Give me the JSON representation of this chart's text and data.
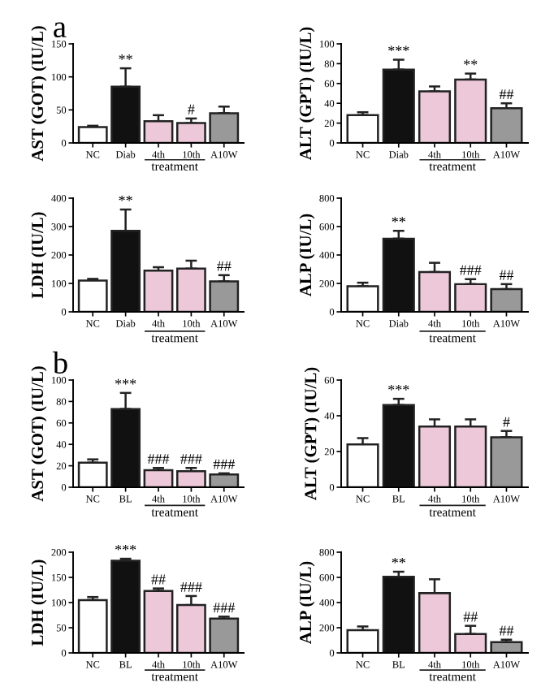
{
  "chart_data": [
    {
      "type": "bar",
      "title": "a",
      "ylabel": "AST (GOT) (IU/L)",
      "xlabel": "treatment",
      "categories": [
        "NC",
        "Diab",
        "4th",
        "10th",
        "A10W"
      ],
      "values": [
        24,
        85,
        33,
        30,
        45
      ],
      "colors": [
        "#ffffff",
        "#111111",
        "#ecc8d8",
        "#ecc8d8",
        "#999999"
      ],
      "errors": [
        [
          24,
          26
        ],
        [
          85,
          113
        ],
        [
          33,
          42
        ],
        [
          30,
          37
        ],
        [
          45,
          55
        ]
      ],
      "ylim": [
        0,
        150
      ],
      "yticks": [
        0,
        50,
        100,
        150
      ],
      "annotations": [
        {
          "text": "**",
          "x": "Diab",
          "y": 113
        },
        {
          "text": "#",
          "x": "10th",
          "y": 37
        }
      ]
    },
    {
      "type": "bar",
      "ylabel": "ALT (GPT) (IU/L)",
      "xlabel": "treatment",
      "categories": [
        "NC",
        "Diab",
        "4th",
        "10th",
        "A10W"
      ],
      "values": [
        28,
        74,
        52,
        64,
        35
      ],
      "colors": [
        "#ffffff",
        "#111111",
        "#ecc8d8",
        "#ecc8d8",
        "#999999"
      ],
      "errors": [
        [
          28,
          31
        ],
        [
          74,
          84
        ],
        [
          52,
          57
        ],
        [
          64,
          70
        ],
        [
          35,
          40
        ]
      ],
      "ylim": [
        0,
        100
      ],
      "yticks": [
        0,
        20,
        40,
        60,
        80,
        100
      ],
      "annotations": [
        {
          "text": "***",
          "x": "Diab",
          "y": 84
        },
        {
          "text": "**",
          "x": "10th",
          "y": 70
        },
        {
          "text": "##",
          "x": "A10W",
          "y": 40
        }
      ]
    },
    {
      "type": "bar",
      "ylabel": "LDH (IU/L)",
      "xlabel": "treatment",
      "categories": [
        "NC",
        "Diab",
        "4th",
        "10th",
        "A10W"
      ],
      "values": [
        110,
        285,
        145,
        152,
        107
      ],
      "colors": [
        "#ffffff",
        "#111111",
        "#ecc8d8",
        "#ecc8d8",
        "#999999"
      ],
      "errors": [
        [
          110,
          116
        ],
        [
          285,
          360
        ],
        [
          145,
          157
        ],
        [
          152,
          180
        ],
        [
          107,
          129
        ]
      ],
      "ylim": [
        0,
        400
      ],
      "yticks": [
        0,
        100,
        200,
        300,
        400
      ],
      "annotations": [
        {
          "text": "**",
          "x": "Diab",
          "y": 360
        },
        {
          "text": "##",
          "x": "A10W",
          "y": 129
        }
      ]
    },
    {
      "type": "bar",
      "ylabel": "ALP (IU/L)",
      "xlabel": "treatment",
      "categories": [
        "NC",
        "Diab",
        "4th",
        "10th",
        "A10W"
      ],
      "values": [
        180,
        515,
        280,
        195,
        160
      ],
      "colors": [
        "#ffffff",
        "#111111",
        "#ecc8d8",
        "#ecc8d8",
        "#999999"
      ],
      "errors": [
        [
          180,
          205
        ],
        [
          515,
          570
        ],
        [
          280,
          345
        ],
        [
          195,
          230
        ],
        [
          160,
          195
        ]
      ],
      "ylim": [
        0,
        800
      ],
      "yticks": [
        0,
        200,
        400,
        600,
        800
      ],
      "annotations": [
        {
          "text": "**",
          "x": "Diab",
          "y": 570
        },
        {
          "text": "###",
          "x": "10th",
          "y": 230
        },
        {
          "text": "##",
          "x": "A10W",
          "y": 195
        }
      ]
    },
    {
      "type": "bar",
      "title": "b",
      "ylabel": "AST (GOT) (IU/L)",
      "xlabel": "treatment",
      "categories": [
        "NC",
        "BL",
        "4th",
        "10th",
        "A10W"
      ],
      "values": [
        23,
        73,
        16,
        15,
        12
      ],
      "colors": [
        "#ffffff",
        "#111111",
        "#ecc8d8",
        "#ecc8d8",
        "#999999"
      ],
      "errors": [
        [
          23,
          26
        ],
        [
          73,
          88
        ],
        [
          16,
          18
        ],
        [
          15,
          18
        ],
        [
          12,
          13
        ]
      ],
      "ylim": [
        0,
        100
      ],
      "yticks": [
        0,
        20,
        40,
        60,
        80,
        100
      ],
      "annotations": [
        {
          "text": "***",
          "x": "BL",
          "y": 88
        },
        {
          "text": "###",
          "x": "4th",
          "y": 18
        },
        {
          "text": "###",
          "x": "10th",
          "y": 18
        },
        {
          "text": "###",
          "x": "A10W",
          "y": 13
        }
      ]
    },
    {
      "type": "bar",
      "ylabel": "ALT (GPT) (IU/L)",
      "xlabel": "treatment",
      "categories": [
        "NC",
        "BL",
        "4th",
        "10th",
        "A10W"
      ],
      "values": [
        24,
        46,
        34,
        34,
        28
      ],
      "colors": [
        "#ffffff",
        "#111111",
        "#ecc8d8",
        "#ecc8d8",
        "#999999"
      ],
      "errors": [
        [
          24,
          27.5
        ],
        [
          46,
          49.5
        ],
        [
          34,
          38
        ],
        [
          34,
          38
        ],
        [
          28,
          31.5
        ]
      ],
      "ylim": [
        0,
        60
      ],
      "yticks": [
        0,
        20,
        40,
        60
      ],
      "annotations": [
        {
          "text": "***",
          "x": "BL",
          "y": 49.5
        },
        {
          "text": "#",
          "x": "A10W",
          "y": 31.5
        }
      ]
    },
    {
      "type": "bar",
      "ylabel": "LDH (IU/L)",
      "xlabel": "treatment",
      "categories": [
        "NC",
        "BL",
        "4th",
        "10th",
        "A10W"
      ],
      "values": [
        105,
        183,
        123,
        95,
        68
      ],
      "colors": [
        "#ffffff",
        "#111111",
        "#ecc8d8",
        "#ecc8d8",
        "#999999"
      ],
      "errors": [
        [
          105,
          111
        ],
        [
          183,
          187
        ],
        [
          123,
          128
        ],
        [
          95,
          113
        ],
        [
          68,
          72
        ]
      ],
      "ylim": [
        0,
        200
      ],
      "yticks": [
        0,
        50,
        100,
        150,
        200
      ],
      "annotations": [
        {
          "text": "***",
          "x": "BL",
          "y": 187
        },
        {
          "text": "##",
          "x": "4th",
          "y": 128
        },
        {
          "text": "###",
          "x": "10th",
          "y": 113
        },
        {
          "text": "###",
          "x": "A10W",
          "y": 72
        }
      ]
    },
    {
      "type": "bar",
      "ylabel": "ALP (IU/L)",
      "xlabel": "treatment",
      "categories": [
        "NC",
        "BL",
        "4th",
        "10th",
        "A10W"
      ],
      "values": [
        180,
        605,
        475,
        150,
        85
      ],
      "colors": [
        "#ffffff",
        "#111111",
        "#ecc8d8",
        "#ecc8d8",
        "#999999"
      ],
      "errors": [
        [
          180,
          210
        ],
        [
          605,
          645
        ],
        [
          475,
          585
        ],
        [
          150,
          215
        ],
        [
          85,
          105
        ]
      ],
      "ylim": [
        0,
        800
      ],
      "yticks": [
        0,
        200,
        400,
        600,
        800
      ],
      "annotations": [
        {
          "text": "**",
          "x": "BL",
          "y": 645
        },
        {
          "text": "##",
          "x": "10th",
          "y": 215
        },
        {
          "text": "##",
          "x": "A10W",
          "y": 105
        }
      ]
    }
  ]
}
